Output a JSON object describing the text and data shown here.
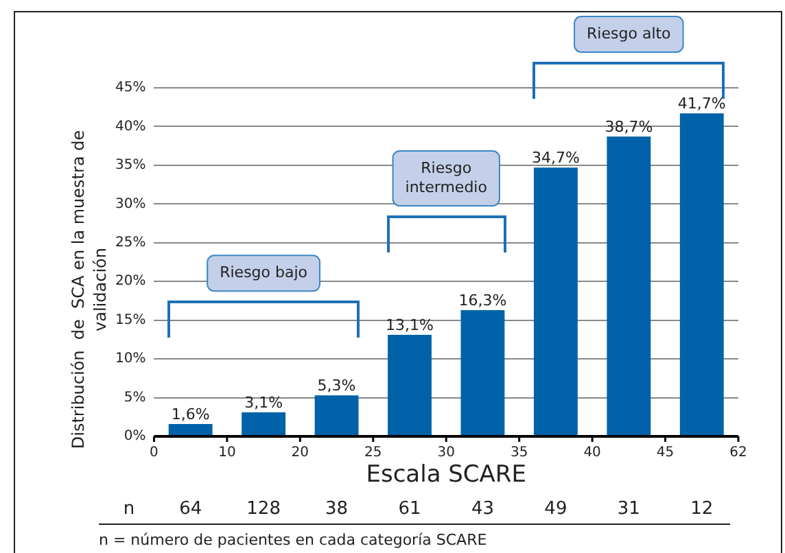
{
  "chart_data": {
    "type": "bar",
    "xlabel": "Escala SCARE",
    "ylabel": "Distribución  de  SCA en la muestra de validación",
    "categories": [
      null,
      null,
      null,
      null,
      null,
      null,
      null,
      null
    ],
    "values": [
      1.6,
      3.1,
      5.3,
      13.1,
      16.3,
      34.7,
      38.7,
      41.7
    ],
    "value_labels": [
      "1,6%",
      "3,1%",
      "5,3%",
      "13,1%",
      "16,3%",
      "34,7%",
      "38,7%",
      "41,7%"
    ],
    "color": "#0062a9",
    "ylim": [
      0,
      45
    ],
    "yticks": [
      {
        "value": 0,
        "label": "0%"
      },
      {
        "value": 5,
        "label": "5%"
      },
      {
        "value": 10,
        "label": "10%"
      },
      {
        "value": 15,
        "label": "15%"
      },
      {
        "value": 20,
        "label": "20%"
      },
      {
        "value": 25,
        "label": "25%"
      },
      {
        "value": 30,
        "label": "30%"
      },
      {
        "value": 35,
        "label": "35%"
      },
      {
        "value": 40,
        "label": "40%"
      },
      {
        "value": 45,
        "label": "45%"
      }
    ],
    "grid": "y",
    "annotations": [
      "Riesgo bajo",
      "Riesgo intermedio",
      "Riesgo alto",
      "0",
      "10",
      "20",
      "25",
      "30",
      "35",
      "40",
      "45",
      "62",
      "n",
      "64",
      "128",
      "38",
      "61",
      "43",
      "49",
      "31",
      "12",
      "n = número de pacientes en cada categoría SCARE"
    ]
  }
}
